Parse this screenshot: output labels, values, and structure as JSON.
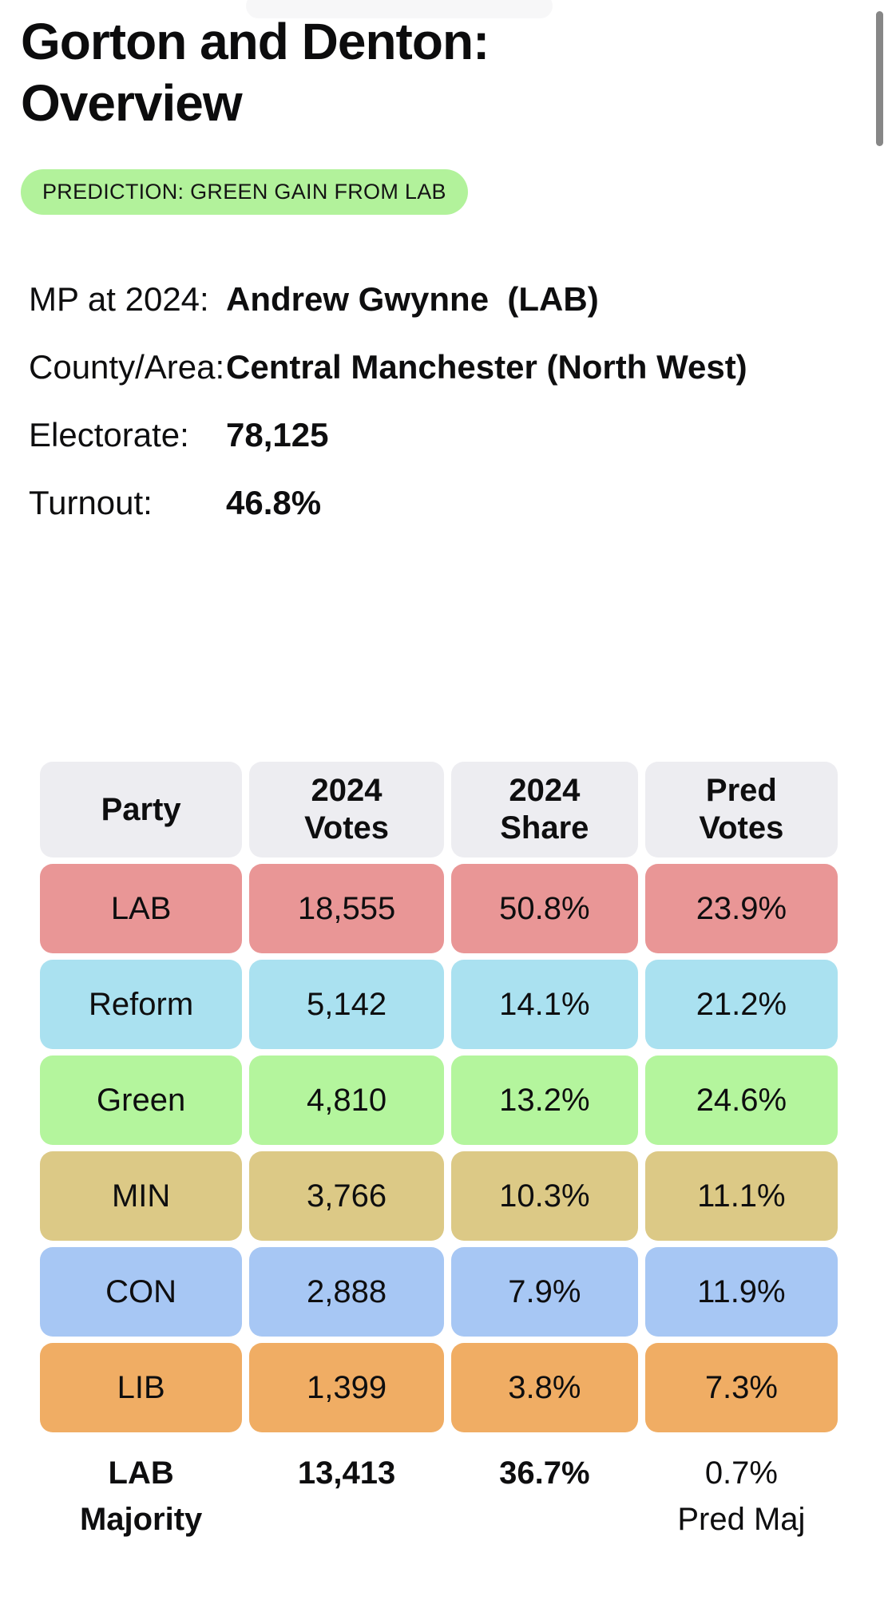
{
  "page": {
    "title": "Gorton and Denton: Overview",
    "prediction_badge": "PREDICTION: GREEN GAIN FROM LAB"
  },
  "details": [
    {
      "label": "MP at 2024:",
      "value": "Andrew Gwynne  (LAB)"
    },
    {
      "label": "County/Area:",
      "value": "Central Manchester (North West)"
    },
    {
      "label": "Electorate:",
      "value": "78,125"
    },
    {
      "label": "Turnout:",
      "value": "46.8%"
    }
  ],
  "results_table": {
    "headers": [
      [
        "Party"
      ],
      [
        "2024",
        "Votes"
      ],
      [
        "2024",
        "Share"
      ],
      [
        "Pred",
        "Votes"
      ]
    ],
    "rows": [
      {
        "party": "LAB",
        "votes_2024": "18,555",
        "share_2024": "50.8%",
        "pred_votes": "23.9%",
        "color": "#e99696"
      },
      {
        "party": "Reform",
        "votes_2024": "5,142",
        "share_2024": "14.1%",
        "pred_votes": "21.2%",
        "color": "#aae1f0"
      },
      {
        "party": "Green",
        "votes_2024": "4,810",
        "share_2024": "13.2%",
        "pred_votes": "24.6%",
        "color": "#b4f59d"
      },
      {
        "party": "MIN",
        "votes_2024": "3,766",
        "share_2024": "10.3%",
        "pred_votes": "11.1%",
        "color": "#dcc986"
      },
      {
        "party": "CON",
        "votes_2024": "2,888",
        "share_2024": "7.9%",
        "pred_votes": "11.9%",
        "color": "#a7c7f4"
      },
      {
        "party": "LIB",
        "votes_2024": "1,399",
        "share_2024": "3.8%",
        "pred_votes": "7.3%",
        "color": "#f0ad64"
      }
    ],
    "footer": {
      "party": [
        "LAB",
        "Majority"
      ],
      "votes_2024": "13,413",
      "share_2024": "36.7%",
      "pred": [
        "0.7%",
        "Pred Maj"
      ]
    }
  },
  "colors": {
    "badge_background": "#b2f29b",
    "header_cell_background": "#ededf1",
    "scrollbar": "#878787",
    "text": "#0e0e0f"
  }
}
